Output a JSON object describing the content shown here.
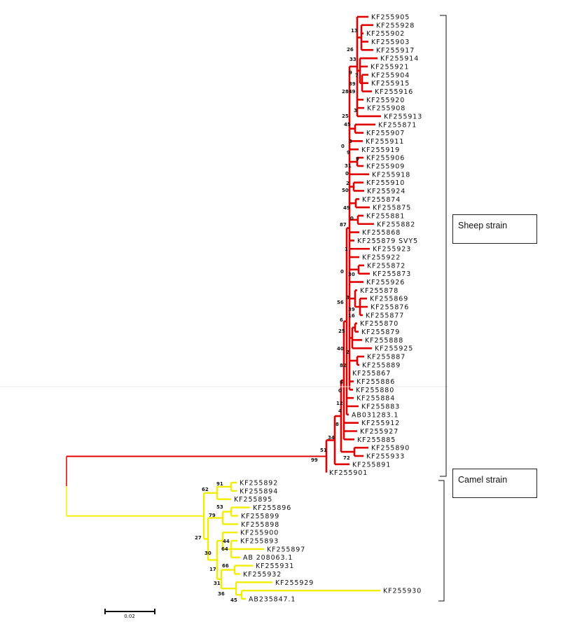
{
  "colors": {
    "sheep_clade": "#e00000",
    "camel_clade": "#f2ee00",
    "bracket": "#111111"
  },
  "clades": {
    "sheep": {
      "label": "Sheep strain"
    },
    "camel": {
      "label": "Camel strain"
    }
  },
  "scale_bar": {
    "label": "0.02"
  },
  "sheep_leaves": [
    "KF255905",
    "KF255928",
    "KF255902",
    "KF255903",
    "KF255917",
    "KF255914",
    "KF255921",
    "KF255904",
    "KF255915",
    "KF255916",
    "KF255920",
    "KF255908",
    "KF255913",
    "KF255871",
    "KF255907",
    "KF255911",
    "KF255919",
    "KF255906",
    "KF255909",
    "KF255918",
    "KF255910",
    "KF255924",
    "KF255874",
    "KF255875",
    "KF255881",
    "KF255882",
    "KF255868",
    "KF255879 SVY5",
    "KF255923",
    "KF255922",
    "KF255872",
    "KF255873",
    "KF255926",
    "KF255878",
    "KF255869",
    "KF255876",
    "KF255877",
    "KF255870",
    "KF255879",
    "KF255888",
    "KF255925",
    "KF255887",
    "KF255889",
    "KF255867",
    "KF255886",
    "KF255880",
    "KF255884",
    "KF255883",
    "AB031283.1",
    "KF255912",
    "KF255927",
    "KF255885",
    "KF255890",
    "KF255933",
    "KF255891",
    "KF255901"
  ],
  "camel_leaves": [
    "KF255892",
    "KF255894",
    "KF255895",
    "KF255896",
    "KF255899",
    "KF255898",
    "KF255900",
    "KF255893",
    "KF255897",
    "AB 208063.1",
    "KF255931",
    "KF255932",
    "KF255929",
    "KF255930",
    "AB235847.1"
  ],
  "sheep_bootstrap": [
    "13",
    "26",
    "33",
    "9",
    "7",
    "39",
    "2849",
    "3",
    "25",
    "45",
    "3",
    "0",
    "9",
    "9",
    "31",
    "0",
    "2",
    "50",
    "49",
    "0",
    "87",
    "1",
    "0",
    "30",
    "3",
    "56",
    "39",
    "16",
    "6",
    "25",
    "40",
    "2",
    "82",
    "6",
    "0",
    "12",
    "4",
    "8",
    "34",
    "51",
    "72",
    "99"
  ],
  "camel_bootstrap": [
    "91",
    "62",
    "53",
    "79",
    "27",
    "44",
    "64",
    "30",
    "66",
    "17",
    "31",
    "36",
    "45"
  ]
}
